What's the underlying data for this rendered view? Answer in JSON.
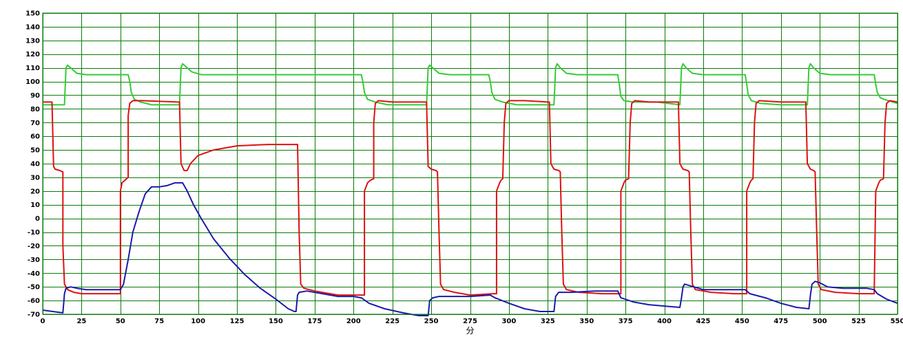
{
  "chart_data": {
    "type": "line",
    "title": "",
    "xlabel": "分",
    "ylabel": "",
    "xlim": [
      0,
      550
    ],
    "ylim": [
      -70,
      150
    ],
    "x_ticks": [
      0,
      25,
      50,
      75,
      100,
      125,
      150,
      175,
      200,
      225,
      250,
      275,
      300,
      325,
      350,
      375,
      400,
      425,
      450,
      475,
      500,
      525,
      550
    ],
    "y_ticks": [
      150,
      140,
      130,
      120,
      110,
      100,
      90,
      80,
      70,
      60,
      50,
      40,
      30,
      20,
      10,
      0,
      -10,
      -20,
      -30,
      -40,
      -50,
      -60,
      -70
    ],
    "grid": true,
    "legend": "none",
    "colors": {
      "grid": "#0a7a0a",
      "green_series": "#33cc33",
      "red_series": "#dd1111",
      "blue_series": "#1a1aaa"
    },
    "series": [
      {
        "color": "#33cc33",
        "points": [
          [
            0,
            83
          ],
          [
            14,
            83
          ],
          [
            15,
            110
          ],
          [
            16,
            112
          ],
          [
            18,
            110
          ],
          [
            22,
            106
          ],
          [
            28,
            105
          ],
          [
            55,
            105
          ],
          [
            56,
            100
          ],
          [
            57,
            92
          ],
          [
            59,
            87
          ],
          [
            63,
            85
          ],
          [
            70,
            83
          ],
          [
            85,
            83
          ],
          [
            88,
            83
          ],
          [
            89,
            110
          ],
          [
            90,
            113
          ],
          [
            92,
            111
          ],
          [
            96,
            107
          ],
          [
            102,
            105
          ],
          [
            205,
            105
          ],
          [
            206,
            100
          ],
          [
            207,
            92
          ],
          [
            209,
            87
          ],
          [
            214,
            85
          ],
          [
            222,
            83
          ],
          [
            240,
            83
          ],
          [
            247,
            83
          ],
          [
            248,
            110
          ],
          [
            249,
            112
          ],
          [
            251,
            110
          ],
          [
            255,
            106
          ],
          [
            262,
            105
          ],
          [
            287,
            105
          ],
          [
            288,
            100
          ],
          [
            289,
            92
          ],
          [
            291,
            87
          ],
          [
            296,
            85
          ],
          [
            305,
            83
          ],
          [
            318,
            83
          ],
          [
            329,
            83
          ],
          [
            330,
            110
          ],
          [
            331,
            113
          ],
          [
            333,
            110
          ],
          [
            337,
            106
          ],
          [
            344,
            105
          ],
          [
            370,
            105
          ],
          [
            371,
            98
          ],
          [
            372,
            89
          ],
          [
            374,
            86
          ],
          [
            380,
            85
          ],
          [
            395,
            85
          ],
          [
            410,
            83
          ],
          [
            411,
            110
          ],
          [
            412,
            113
          ],
          [
            414,
            110
          ],
          [
            418,
            106
          ],
          [
            425,
            105
          ],
          [
            452,
            105
          ],
          [
            453,
            98
          ],
          [
            454,
            90
          ],
          [
            456,
            86
          ],
          [
            462,
            84
          ],
          [
            475,
            83
          ],
          [
            492,
            83
          ],
          [
            493,
            110
          ],
          [
            494,
            113
          ],
          [
            496,
            110
          ],
          [
            500,
            106
          ],
          [
            507,
            105
          ],
          [
            535,
            105
          ],
          [
            536,
            98
          ],
          [
            537,
            92
          ],
          [
            539,
            88
          ],
          [
            544,
            86
          ],
          [
            550,
            84
          ]
        ]
      },
      {
        "color": "#dd1111",
        "points": [
          [
            0,
            85
          ],
          [
            6,
            85
          ],
          [
            7,
            38
          ],
          [
            8,
            36
          ],
          [
            11,
            35
          ],
          [
            13,
            34
          ],
          [
            13,
            -20
          ],
          [
            14,
            -48
          ],
          [
            16,
            -52
          ],
          [
            20,
            -54
          ],
          [
            25,
            -55
          ],
          [
            35,
            -55
          ],
          [
            49,
            -55
          ],
          [
            50,
            -55
          ],
          [
            50,
            20
          ],
          [
            51,
            26
          ],
          [
            53,
            28
          ],
          [
            55,
            30
          ],
          [
            55,
            75
          ],
          [
            56,
            84
          ],
          [
            58,
            86
          ],
          [
            64,
            86
          ],
          [
            87,
            85
          ],
          [
            88,
            85
          ],
          [
            89,
            40
          ],
          [
            91,
            35
          ],
          [
            93,
            35
          ],
          [
            95,
            40
          ],
          [
            100,
            46
          ],
          [
            110,
            50
          ],
          [
            125,
            53
          ],
          [
            145,
            54
          ],
          [
            163,
            54
          ],
          [
            164,
            54
          ],
          [
            165,
            -10
          ],
          [
            166,
            -48
          ],
          [
            168,
            -51
          ],
          [
            175,
            -53
          ],
          [
            190,
            -56
          ],
          [
            205,
            -56
          ],
          [
            207,
            -56
          ],
          [
            207,
            20
          ],
          [
            209,
            26
          ],
          [
            211,
            28
          ],
          [
            213,
            29
          ],
          [
            213,
            70
          ],
          [
            214,
            84
          ],
          [
            216,
            86
          ],
          [
            225,
            85
          ],
          [
            246,
            85
          ],
          [
            247,
            85
          ],
          [
            248,
            38
          ],
          [
            250,
            36
          ],
          [
            253,
            35
          ],
          [
            254,
            34
          ],
          [
            255,
            -10
          ],
          [
            256,
            -48
          ],
          [
            258,
            -52
          ],
          [
            265,
            -54
          ],
          [
            275,
            -56
          ],
          [
            290,
            -55
          ],
          [
            292,
            -55
          ],
          [
            292,
            20
          ],
          [
            294,
            26
          ],
          [
            295,
            28
          ],
          [
            296,
            29
          ],
          [
            297,
            70
          ],
          [
            298,
            84
          ],
          [
            300,
            86
          ],
          [
            310,
            86
          ],
          [
            325,
            85
          ],
          [
            326,
            85
          ],
          [
            327,
            40
          ],
          [
            329,
            36
          ],
          [
            332,
            35
          ],
          [
            333,
            34
          ],
          [
            334,
            -10
          ],
          [
            335,
            -48
          ],
          [
            337,
            -52
          ],
          [
            345,
            -54
          ],
          [
            360,
            -55
          ],
          [
            371,
            -55
          ],
          [
            372,
            -55
          ],
          [
            372,
            20
          ],
          [
            374,
            26
          ],
          [
            375,
            28
          ],
          [
            377,
            29
          ],
          [
            378,
            70
          ],
          [
            379,
            84
          ],
          [
            381,
            86
          ],
          [
            390,
            85
          ],
          [
            408,
            85
          ],
          [
            409,
            85
          ],
          [
            410,
            40
          ],
          [
            412,
            36
          ],
          [
            415,
            35
          ],
          [
            416,
            34
          ],
          [
            417,
            -10
          ],
          [
            418,
            -48
          ],
          [
            420,
            -52
          ],
          [
            430,
            -54
          ],
          [
            445,
            -55
          ],
          [
            452,
            -55
          ],
          [
            453,
            -55
          ],
          [
            453,
            20
          ],
          [
            455,
            26
          ],
          [
            456,
            28
          ],
          [
            457,
            29
          ],
          [
            458,
            70
          ],
          [
            459,
            84
          ],
          [
            461,
            86
          ],
          [
            475,
            85
          ],
          [
            490,
            85
          ],
          [
            491,
            85
          ],
          [
            492,
            40
          ],
          [
            494,
            36
          ],
          [
            496,
            35
          ],
          [
            497,
            34
          ],
          [
            498,
            -10
          ],
          [
            499,
            -48
          ],
          [
            501,
            -52
          ],
          [
            510,
            -54
          ],
          [
            525,
            -55
          ],
          [
            535,
            -55
          ],
          [
            536,
            20
          ],
          [
            538,
            26
          ],
          [
            539,
            28
          ],
          [
            541,
            29
          ],
          [
            542,
            70
          ],
          [
            543,
            84
          ],
          [
            545,
            86
          ],
          [
            550,
            85
          ]
        ]
      },
      {
        "color": "#1a1aaa",
        "points": [
          [
            0,
            -67
          ],
          [
            13,
            -69
          ],
          [
            14,
            -55
          ],
          [
            15,
            -51
          ],
          [
            18,
            -50
          ],
          [
            22,
            -51
          ],
          [
            28,
            -52
          ],
          [
            40,
            -52
          ],
          [
            50,
            -52
          ],
          [
            52,
            -48
          ],
          [
            55,
            -30
          ],
          [
            58,
            -10
          ],
          [
            62,
            5
          ],
          [
            66,
            18
          ],
          [
            70,
            23
          ],
          [
            75,
            23
          ],
          [
            80,
            24
          ],
          [
            85,
            26
          ],
          [
            90,
            26
          ],
          [
            93,
            20
          ],
          [
            97,
            10
          ],
          [
            102,
            0
          ],
          [
            110,
            -15
          ],
          [
            120,
            -29
          ],
          [
            130,
            -41
          ],
          [
            140,
            -51
          ],
          [
            150,
            -59
          ],
          [
            158,
            -66
          ],
          [
            162,
            -68
          ],
          [
            163,
            -68
          ],
          [
            164,
            -56
          ],
          [
            165,
            -54
          ],
          [
            170,
            -53
          ],
          [
            185,
            -56
          ],
          [
            190,
            -57
          ],
          [
            200,
            -57
          ],
          [
            205,
            -58
          ],
          [
            210,
            -62
          ],
          [
            220,
            -66
          ],
          [
            232,
            -69
          ],
          [
            242,
            -71
          ],
          [
            248,
            -71
          ],
          [
            249,
            -60
          ],
          [
            251,
            -58
          ],
          [
            255,
            -57
          ],
          [
            265,
            -57
          ],
          [
            275,
            -57
          ],
          [
            288,
            -56
          ],
          [
            291,
            -58
          ],
          [
            300,
            -62
          ],
          [
            310,
            -66
          ],
          [
            320,
            -68
          ],
          [
            327,
            -68
          ],
          [
            329,
            -68
          ],
          [
            330,
            -57
          ],
          [
            332,
            -54
          ],
          [
            340,
            -54
          ],
          [
            355,
            -53
          ],
          [
            370,
            -53
          ],
          [
            372,
            -58
          ],
          [
            380,
            -61
          ],
          [
            390,
            -63
          ],
          [
            400,
            -64
          ],
          [
            410,
            -65
          ],
          [
            411,
            -58
          ],
          [
            412,
            -50
          ],
          [
            413,
            -48
          ],
          [
            416,
            -49
          ],
          [
            425,
            -52
          ],
          [
            440,
            -52
          ],
          [
            452,
            -52
          ],
          [
            455,
            -55
          ],
          [
            465,
            -58
          ],
          [
            475,
            -62
          ],
          [
            485,
            -65
          ],
          [
            493,
            -66
          ],
          [
            494,
            -56
          ],
          [
            495,
            -48
          ],
          [
            497,
            -46
          ],
          [
            500,
            -47
          ],
          [
            505,
            -50
          ],
          [
            515,
            -51
          ],
          [
            530,
            -51
          ],
          [
            535,
            -52
          ],
          [
            537,
            -55
          ],
          [
            543,
            -59
          ],
          [
            550,
            -62
          ]
        ]
      }
    ]
  }
}
